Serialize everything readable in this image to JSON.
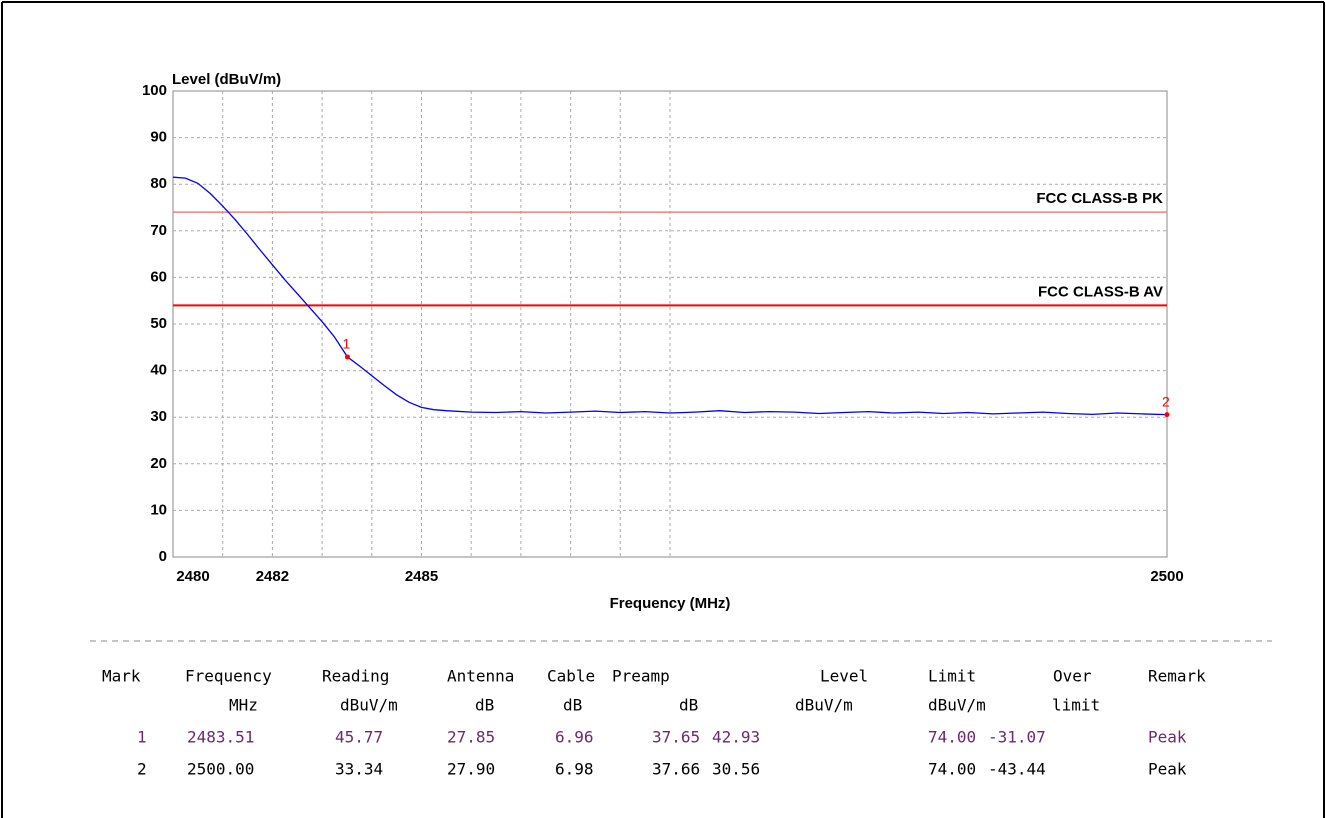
{
  "chart_data": {
    "type": "line",
    "ylabel": "Level (dBuV/m)",
    "xlabel": "Frequency (MHz)",
    "xlim": [
      2480,
      2500
    ],
    "ylim": [
      0,
      100
    ],
    "xticks": [
      2480,
      2482,
      2485,
      2500
    ],
    "xgrid": [
      2481,
      2482,
      2483,
      2484,
      2485,
      2486,
      2487,
      2488,
      2489,
      2490
    ],
    "yticks": [
      0,
      10,
      20,
      30,
      40,
      50,
      60,
      70,
      80,
      90,
      100
    ],
    "grid": true,
    "series": [
      {
        "color": "#0000ff",
        "x": [
          2480,
          2480.25,
          2480.5,
          2480.75,
          2481,
          2481.25,
          2481.5,
          2481.75,
          2482,
          2482.25,
          2482.5,
          2482.75,
          2483,
          2483.25,
          2483.51,
          2483.75,
          2484,
          2484.25,
          2484.5,
          2484.75,
          2485,
          2485.25,
          2485.5,
          2486,
          2486.5,
          2487,
          2487.5,
          2488,
          2488.5,
          2489,
          2489.5,
          2490,
          2490.5,
          2491,
          2491.5,
          2492,
          2492.5,
          2493,
          2493.5,
          2494,
          2494.5,
          2495,
          2495.5,
          2496,
          2496.5,
          2497,
          2497.5,
          2498,
          2498.5,
          2499,
          2499.5,
          2500
        ],
        "values": [
          81.5,
          81.3,
          80.2,
          78,
          75.3,
          72.4,
          69.2,
          65.9,
          62.7,
          59.5,
          56.5,
          53.5,
          50.5,
          47.2,
          42.93,
          41,
          38.9,
          36.8,
          34.8,
          33.2,
          32.1,
          31.6,
          31.4,
          31.1,
          31.0,
          31.2,
          30.9,
          31.1,
          31.3,
          31.0,
          31.2,
          30.9,
          31.1,
          31.4,
          31.0,
          31.2,
          31.1,
          30.8,
          31.0,
          31.2,
          30.9,
          31.1,
          30.8,
          31.0,
          30.7,
          30.9,
          31.1,
          30.8,
          30.6,
          30.9,
          30.7,
          30.56
        ]
      }
    ],
    "limits": [
      {
        "name": "FCC CLASS-B PK",
        "value": 74,
        "color": "#f08080"
      },
      {
        "name": "FCC CLASS-B AV",
        "value": 54,
        "color": "#ff0000"
      }
    ],
    "markers": [
      {
        "label": "1",
        "x": 2483.51,
        "y": 42.93,
        "color": "#ff0000"
      },
      {
        "label": "2",
        "x": 2500,
        "y": 30.56,
        "color": "#ff0000"
      }
    ]
  },
  "table": {
    "header": [
      {
        "name": "Mark"
      },
      {
        "name": "Frequency",
        "unit": "MHz"
      },
      {
        "name": "Reading",
        "unit": "dBuV/m"
      },
      {
        "name": "Antenna",
        "unit": "dB"
      },
      {
        "name": "Cable",
        "unit": "dB"
      },
      {
        "name": "Preamp",
        "unit": "dB"
      },
      {
        "name": "Level",
        "unit": "dBuV/m"
      },
      {
        "name": "Limit",
        "unit": "dBuV/m"
      },
      {
        "name": "Over",
        "unit": "limit"
      },
      {
        "name": "Remark"
      }
    ],
    "rows": [
      [
        "1",
        "2483.51",
        "45.77",
        "27.85",
        "6.96",
        "37.65",
        "42.93",
        "74.00",
        "-31.07",
        "Peak"
      ],
      [
        "2",
        "2500.00",
        "33.34",
        "27.90",
        "6.98",
        "37.66",
        "30.56",
        "74.00",
        "-43.44",
        "Peak"
      ]
    ]
  }
}
